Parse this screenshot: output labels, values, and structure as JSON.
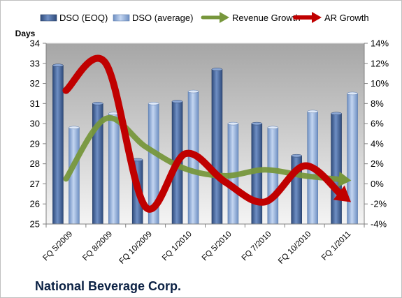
{
  "chart_data": {
    "type": "bar",
    "company": "National Beverage Corp.",
    "ylabel": "Days",
    "categories": [
      "FQ 5/2009",
      "FQ 8/2009",
      "FQ 10/2009",
      "FQ 1/2010",
      "FQ 5/2010",
      "FQ 7/2010",
      "FQ 10/2010",
      "FQ 1/2011"
    ],
    "ylim": [
      25,
      34
    ],
    "y_ticks": [
      "25",
      "26",
      "27",
      "28",
      "29",
      "30",
      "31",
      "32",
      "33",
      "34"
    ],
    "y2lim": [
      -4,
      14
    ],
    "y2_ticks": [
      "-4%",
      "-2%",
      "0%",
      "2%",
      "4%",
      "6%",
      "8%",
      "10%",
      "12%",
      "14%"
    ],
    "legend_position": "top",
    "grid": false,
    "series": [
      {
        "name": "DSO (EOQ)",
        "type": "bar",
        "axis": "left",
        "color": "#4f6fa3",
        "values": [
          32.9,
          31.0,
          28.2,
          31.1,
          32.7,
          30.0,
          28.4,
          30.5
        ]
      },
      {
        "name": "DSO (average)",
        "type": "bar",
        "axis": "left",
        "color": "#8eaedc",
        "values": [
          29.8,
          30.5,
          31.0,
          31.6,
          30.0,
          29.8,
          30.6,
          31.5
        ]
      },
      {
        "name": "Revenue Growth",
        "type": "line",
        "axis": "right",
        "unit": "%",
        "color": "#77973c",
        "values": [
          0.5,
          6.5,
          3.7,
          1.5,
          0.8,
          1.4,
          0.8,
          0.4
        ]
      },
      {
        "name": "AR Growth",
        "type": "line",
        "axis": "right",
        "unit": "%",
        "color": "#c00000",
        "values": [
          9.3,
          12.0,
          -2.3,
          3.0,
          0.2,
          -1.8,
          1.8,
          -1.3
        ]
      }
    ]
  }
}
